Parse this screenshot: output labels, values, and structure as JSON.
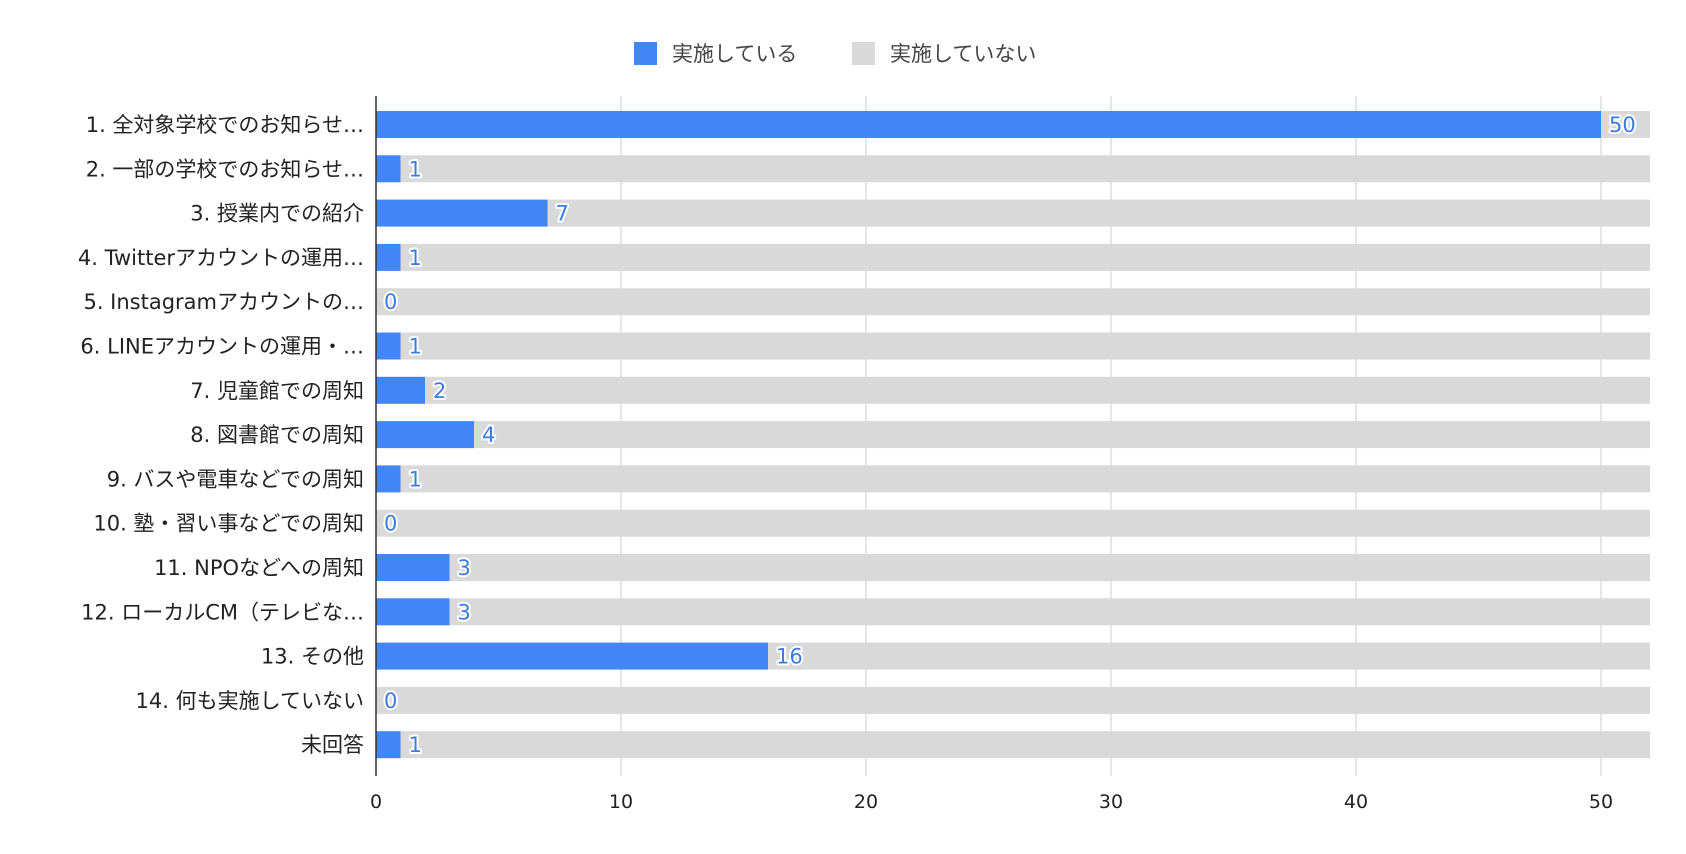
{
  "chart_data": {
    "type": "bar",
    "orientation": "horizontal",
    "stacked": true,
    "categories": [
      "1. 全対象学校でのお知らせ…",
      "2. 一部の学校でのお知らせ…",
      "3. 授業内での紹介",
      "4. Twitterアカウントの運用…",
      "5. Instagramアカウントの…",
      "6. LINEアカウントの運用・…",
      "7. 児童館での周知",
      "8. 図書館での周知",
      "9. バスや電車などでの周知",
      "10. 塾・習い事などでの周知",
      "11. NPOなどへの周知",
      "12. ローカルCM（テレビな…",
      "13. その他",
      "14. 何も実施していない",
      "未回答"
    ],
    "series": [
      {
        "name": "実施している",
        "color": "#4285f4",
        "values": [
          50,
          1,
          7,
          1,
          0,
          1,
          2,
          4,
          1,
          0,
          3,
          3,
          16,
          0,
          1
        ]
      },
      {
        "name": "実施していない",
        "color": "#d9d9d9",
        "values": [
          2,
          51,
          45,
          51,
          52,
          51,
          50,
          48,
          51,
          52,
          49,
          49,
          36,
          52,
          51
        ]
      }
    ],
    "data_labels": [
      "50",
      "1",
      "7",
      "1",
      "0",
      "1",
      "2",
      "4",
      "1",
      "0",
      "3",
      "3",
      "16",
      "0",
      "1"
    ],
    "x_ticks": [
      "0",
      "10",
      "20",
      "30",
      "40",
      "50"
    ],
    "xlim": [
      0,
      52
    ],
    "grid": true,
    "legend_position": "top"
  }
}
